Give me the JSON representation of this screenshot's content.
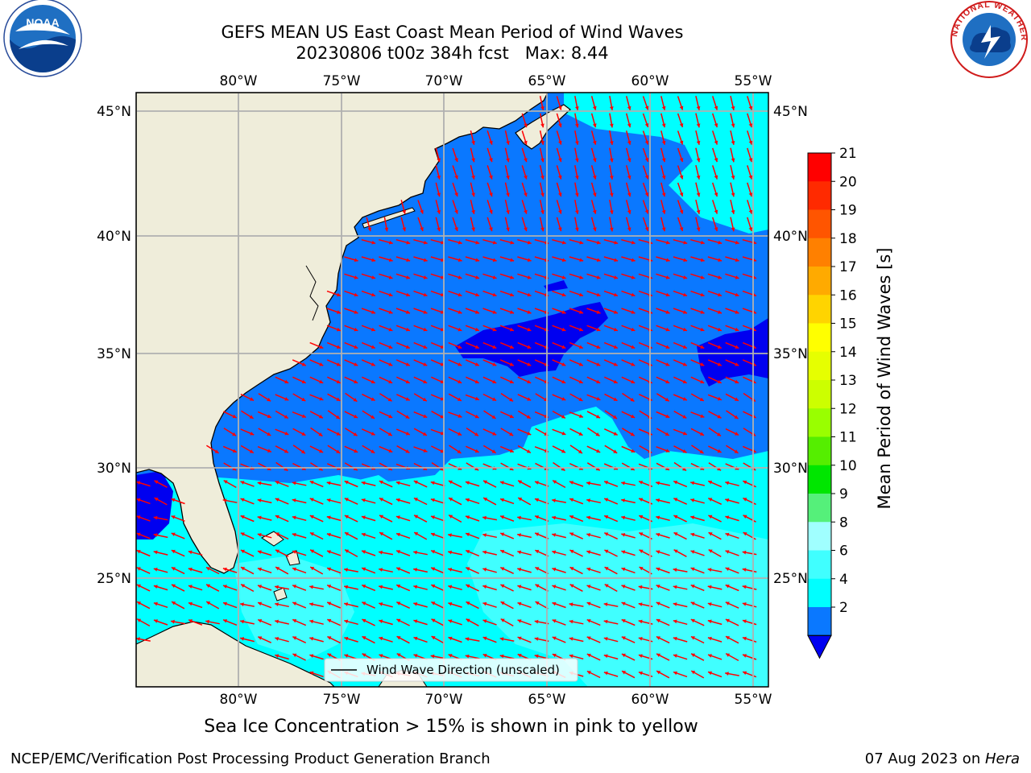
{
  "header": {
    "title_line1": "GEFS MEAN US East Coast Mean Period of Wind Waves",
    "title_line2": "20230806 t00z 384h fcst   Max: 8.44"
  },
  "map": {
    "lon_labels": [
      "80°W",
      "75°W",
      "70°W",
      "65°W",
      "60°W",
      "55°W"
    ],
    "lat_labels": [
      "45°N",
      "40°N",
      "35°N",
      "30°N",
      "25°N"
    ],
    "legend_text": "Wind Wave Direction (unscaled)",
    "colors": {
      "land": "#efedda",
      "level_2_4": "#0a78ff",
      "level_below_2": "#0000f0",
      "level_4_6": "#00ffff",
      "level_6_8": "#40ffff",
      "arrow": "#ff0000",
      "grid": "#b0b0b0"
    }
  },
  "colorbar": {
    "label": "Mean Period of Wind Waves [s]",
    "ticks": [
      "21",
      "20",
      "19",
      "18",
      "17",
      "16",
      "15",
      "14",
      "13",
      "12",
      "11",
      "10",
      "9",
      "8",
      "6",
      "4",
      "2"
    ],
    "colors": [
      "#ff0000",
      "#ff2a00",
      "#ff5500",
      "#ff8000",
      "#ffaa00",
      "#ffd400",
      "#ffff00",
      "#e6ff00",
      "#ccff00",
      "#99ff00",
      "#55ee00",
      "#00e600",
      "#55f07a",
      "#a0ffff",
      "#40ffff",
      "#00ffff",
      "#0a78ff"
    ],
    "extend_color": "#0000f0"
  },
  "footer": {
    "subtitle": "Sea Ice Concentration > 15% is shown in pink to yellow",
    "left": "NCEP/EMC/Verification Post Processing Product Generation Branch",
    "right_date": "07 Aug 2023 on ",
    "right_machine": "Hera"
  },
  "logos": {
    "noaa": "NOAA",
    "nws_text": "NATIONAL WEATHER SERVICE"
  }
}
